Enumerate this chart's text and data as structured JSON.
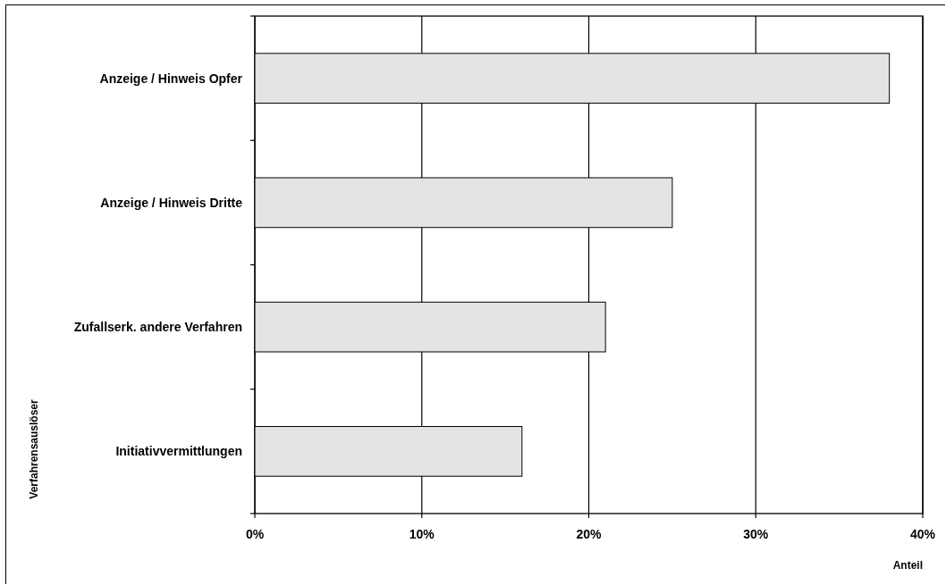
{
  "chart_data": {
    "type": "bar",
    "orientation": "horizontal",
    "categories": [
      "Anzeige / Hinweis Opfer",
      "Anzeige / Hinweis Dritte",
      "Zufallserk. andere Verfahren",
      "Initiativvermittlungen"
    ],
    "values": [
      38,
      25,
      21,
      16
    ],
    "color": "#e4e4e4",
    "xlim": [
      0,
      40
    ],
    "xticks": [
      {
        "value": 0,
        "label": "0%"
      },
      {
        "value": 10,
        "label": "10%"
      },
      {
        "value": 20,
        "label": "20%"
      },
      {
        "value": 30,
        "label": "30%"
      },
      {
        "value": 40,
        "label": "40%"
      }
    ],
    "xlabel": "Anteil",
    "ylabel": "Verfahrensauslöser",
    "grid": "x"
  }
}
